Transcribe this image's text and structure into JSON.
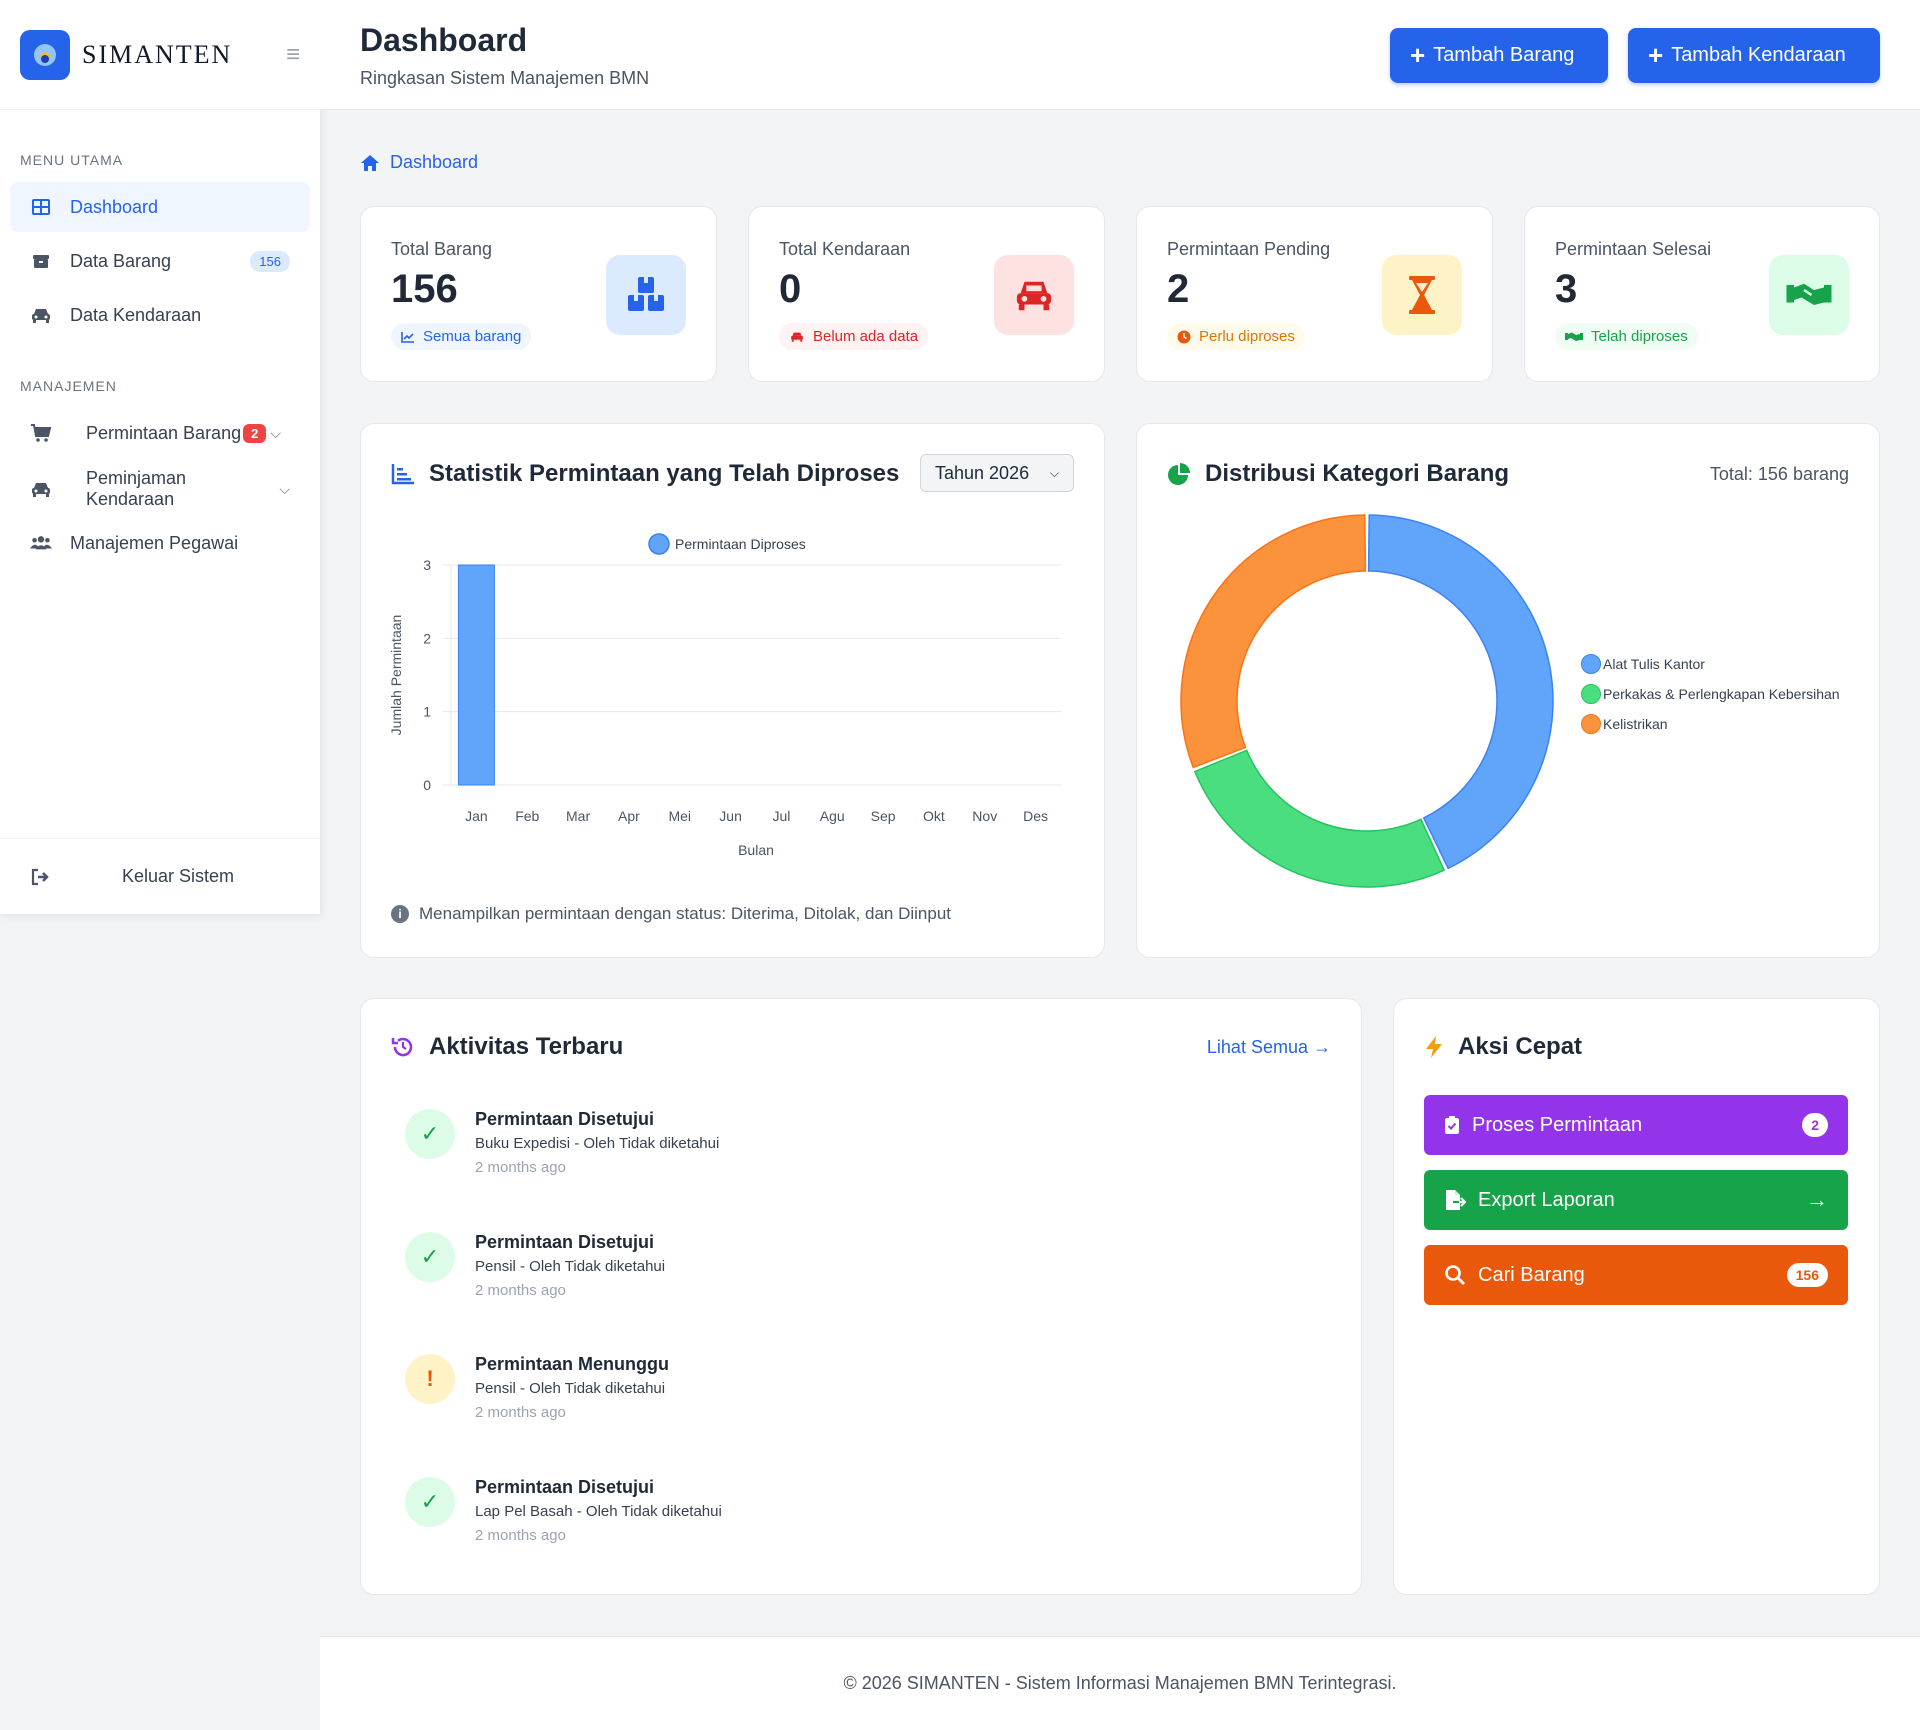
{
  "brand": {
    "name": "SIMANTEN"
  },
  "sidebar": {
    "section_main": "MENU UTAMA",
    "section_manage": "MANAJEMEN",
    "items": [
      {
        "label": "Dashboard"
      },
      {
        "label": "Data Barang",
        "badge": "156"
      },
      {
        "label": "Data Kendaraan"
      },
      {
        "label": "Permintaan Barang",
        "badge": "2"
      },
      {
        "label": "Peminjaman Kendaraan"
      },
      {
        "label": "Manajemen Pegawai"
      }
    ],
    "logout": "Keluar Sistem"
  },
  "header": {
    "title": "Dashboard",
    "subtitle": "Ringkasan Sistem Manajemen BMN",
    "btn_add_item": "Tambah Barang",
    "btn_add_vehicle": "Tambah Kendaraan"
  },
  "breadcrumb": "Dashboard",
  "stats": [
    {
      "label": "Total Barang",
      "value": "156",
      "tag": "Semua barang"
    },
    {
      "label": "Total Kendaraan",
      "value": "0",
      "tag": "Belum ada data"
    },
    {
      "label": "Permintaan Pending",
      "value": "2",
      "tag": "Perlu diproses"
    },
    {
      "label": "Permintaan Selesai",
      "value": "3",
      "tag": "Telah diproses"
    }
  ],
  "colors": {
    "primary": "#2563eb",
    "blue_series": "#60a5fa",
    "green": "#4ade80",
    "orange": "#fb923c",
    "purple": "#9333ea",
    "green_btn": "#16a34a",
    "orange_btn": "#ea580c"
  },
  "bar_card": {
    "title": "Statistik Permintaan yang Telah Diproses",
    "year_select": "Tahun 2026",
    "note": "Menampilkan permintaan dengan status: Diterima, Ditolak, dan Diinput"
  },
  "pie_card": {
    "title": "Distribusi Kategori Barang",
    "total": "Total: 156 barang"
  },
  "chart_data": [
    {
      "type": "bar",
      "title": "",
      "xlabel": "Bulan",
      "ylabel": "Jumlah Permintaan",
      "categories": [
        "Jan",
        "Feb",
        "Mar",
        "Apr",
        "Mei",
        "Jun",
        "Jul",
        "Agu",
        "Sep",
        "Okt",
        "Nov",
        "Des"
      ],
      "series": [
        {
          "name": "Permintaan Diproses",
          "values": [
            3,
            0,
            0,
            0,
            0,
            0,
            0,
            0,
            0,
            0,
            0,
            0
          ]
        }
      ],
      "ylim": [
        0,
        3
      ],
      "yticks": [
        "0",
        "1",
        "2",
        "3"
      ],
      "grid": true,
      "legend": "top"
    },
    {
      "type": "pie",
      "title": "",
      "labels": [
        "Alat Tulis Kantor",
        "Perkakas & Perlengkapan Kebersihan",
        "Kelistrikan"
      ],
      "values": [
        43,
        26,
        31
      ],
      "colors": [
        "#60a5fa",
        "#4ade80",
        "#fb923c"
      ],
      "donut": true,
      "legend": "right"
    }
  ],
  "activity": {
    "title": "Aktivitas Terbaru",
    "see_all": "Lihat Semua",
    "items": [
      {
        "title": "Permintaan Disetujui",
        "desc": "Buku Expedisi - Oleh Tidak diketahui",
        "time": "2 months ago",
        "status": "approved"
      },
      {
        "title": "Permintaan Disetujui",
        "desc": "Pensil - Oleh Tidak diketahui",
        "time": "2 months ago",
        "status": "approved"
      },
      {
        "title": "Permintaan Menunggu",
        "desc": "Pensil - Oleh Tidak diketahui",
        "time": "2 months ago",
        "status": "pending"
      },
      {
        "title": "Permintaan Disetujui",
        "desc": "Lap Pel Basah - Oleh Tidak diketahui",
        "time": "2 months ago",
        "status": "approved"
      }
    ]
  },
  "quick": {
    "title": "Aksi Cepat",
    "items": [
      {
        "label": "Proses Permintaan",
        "badge": "2"
      },
      {
        "label": "Export Laporan"
      },
      {
        "label": "Cari Barang",
        "badge": "156"
      }
    ]
  },
  "footer": "© 2026 SIMANTEN - Sistem Informasi Manajemen BMN Terintegrasi."
}
